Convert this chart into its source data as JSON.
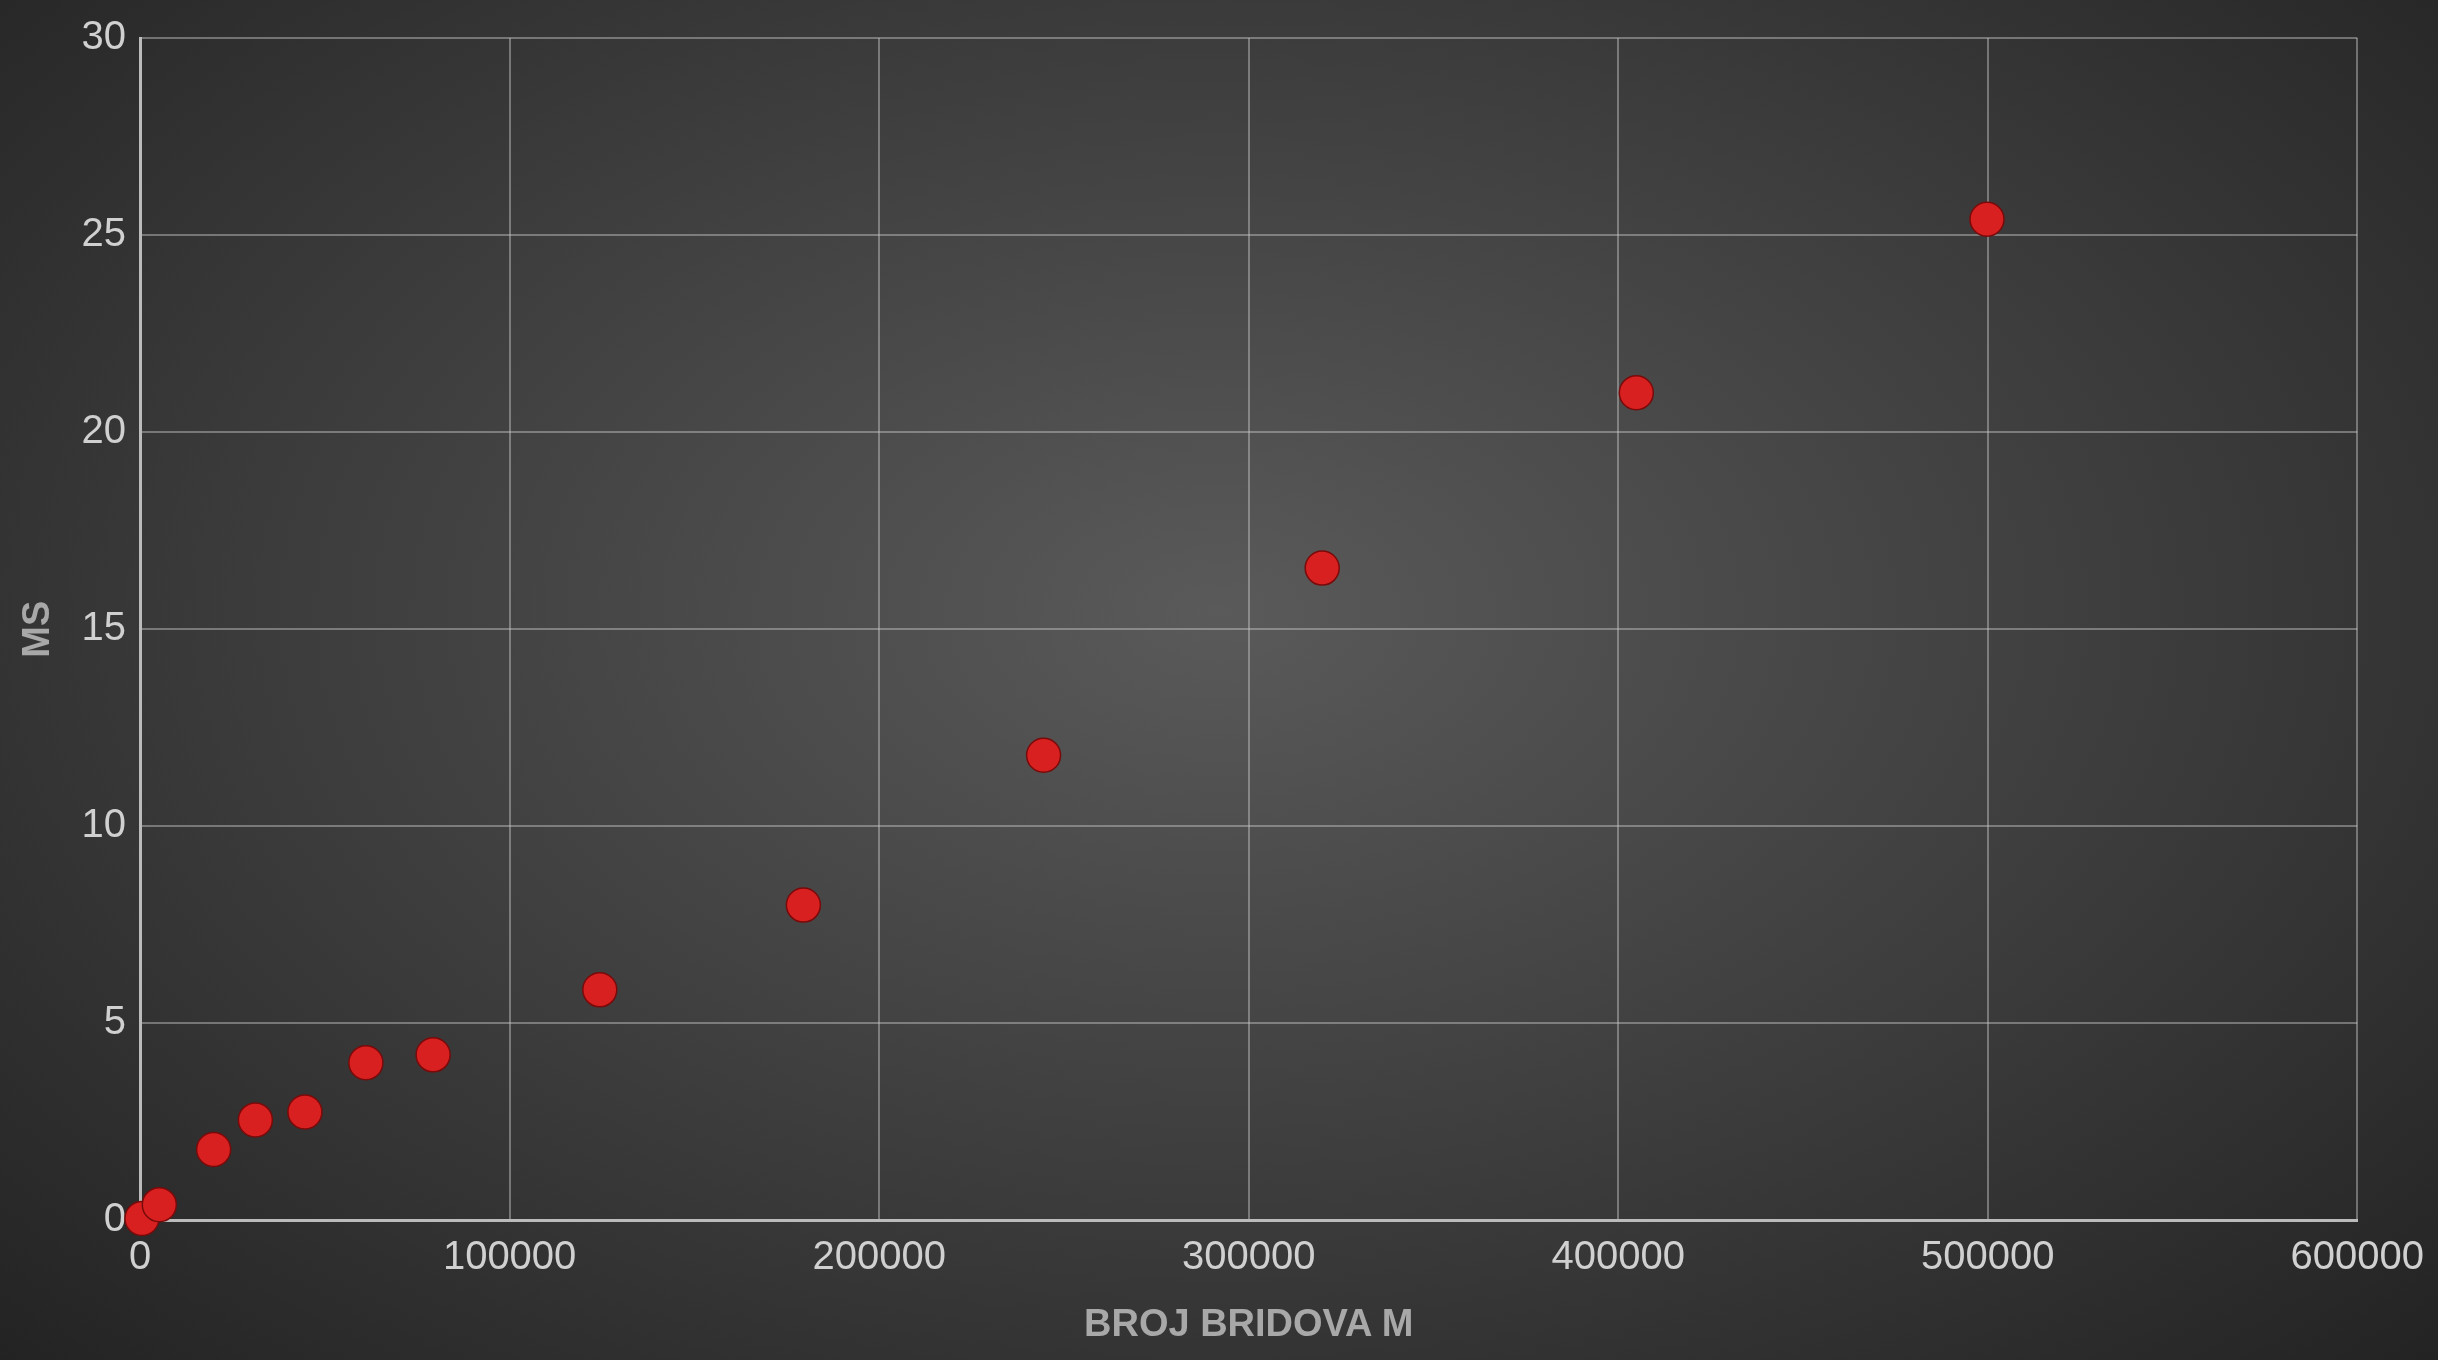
{
  "chart_data": {
    "type": "scatter",
    "xlabel": "BROJ BRIDOVA M",
    "ylabel": "MS",
    "x": [
      500,
      5200,
      19900,
      31200,
      44600,
      61100,
      79300,
      124400,
      179500,
      244500,
      319900,
      404900,
      499800
    ],
    "series": [
      {
        "color": "#d92020",
        "values": [
          0.05,
          0.4,
          1.8,
          2.55,
          2.75,
          4.0,
          4.2,
          5.85,
          8.0,
          11.8,
          16.55,
          21.0,
          25.4
        ]
      }
    ],
    "xlim": [
      0,
      600000
    ],
    "xticks": [
      0,
      100000,
      200000,
      300000,
      400000,
      500000,
      600000
    ],
    "ylim": [
      0,
      30
    ],
    "yticks": [
      0,
      5,
      10,
      15,
      20,
      25,
      30
    ],
    "grid": true,
    "legend": false,
    "marker": "circle"
  }
}
